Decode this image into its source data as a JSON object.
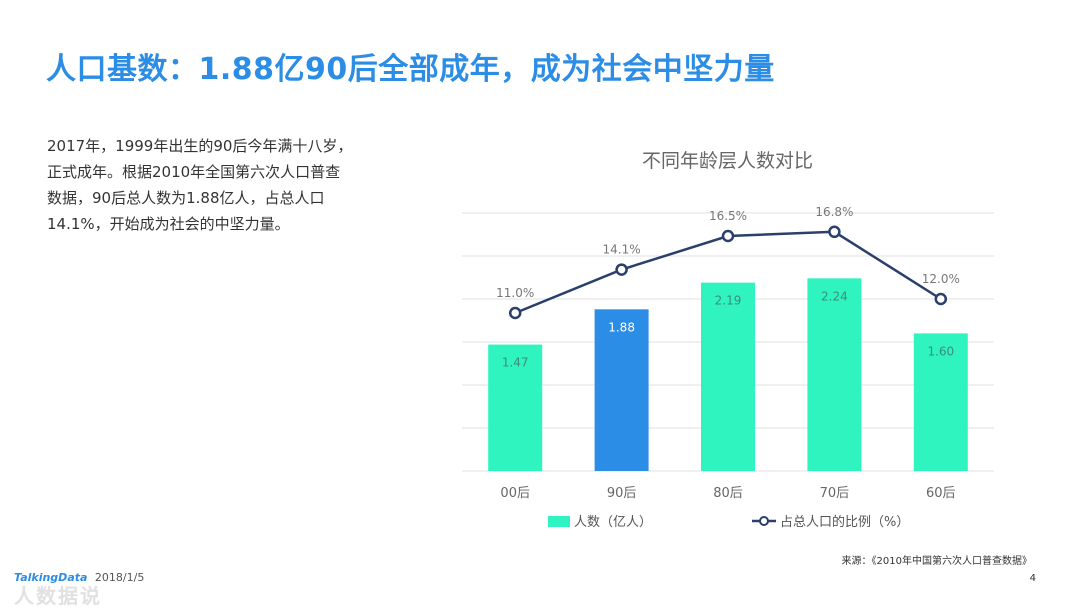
{
  "slide": {
    "title": "人口基数：1.88亿90后全部成年，成为社会中坚力量",
    "paragraph_lines": [
      "2017年，1999年出生的90后今年满十八岁，",
      "正式成年。根据2010年全国第六次人口普查",
      "数据，90后总人数为1.88亿人，占总人口",
      "14.1%，开始成为社会的中坚力量。"
    ],
    "source": "来源：《2010年中国第六次人口普查数据》",
    "page_number": "4",
    "footer": {
      "brand": "TalkingData",
      "date": "2018/1/5",
      "watermark": "人数据说"
    }
  },
  "chart_data": {
    "type": "bar",
    "title": "不同年龄层人数对比",
    "categories": [
      "00后",
      "90后",
      "80后",
      "70后",
      "60后"
    ],
    "series": [
      {
        "name": "人数（亿人）",
        "type": "bar",
        "values": [
          1.47,
          1.88,
          2.19,
          2.24,
          1.6
        ],
        "labels": [
          "1.47",
          "1.88",
          "2.19",
          "2.24",
          "1.60"
        ]
      },
      {
        "name": "占总人口的比例（%）",
        "type": "line",
        "values": [
          11.0,
          14.1,
          16.5,
          16.8,
          12.0
        ],
        "labels": [
          "11.0%",
          "14.1%",
          "16.5%",
          "16.8%",
          "12.0%"
        ]
      }
    ],
    "highlight_category": "90后",
    "legend_position": "bottom",
    "grid": true,
    "ylim_bars": [
      0,
      3.0
    ],
    "colors": {
      "bar": "#2ff4c0",
      "bar_highlight": "#2c8de6",
      "line": "#2b3f6b",
      "grid": "#e2e2e2",
      "axis_text": "#666666"
    }
  }
}
